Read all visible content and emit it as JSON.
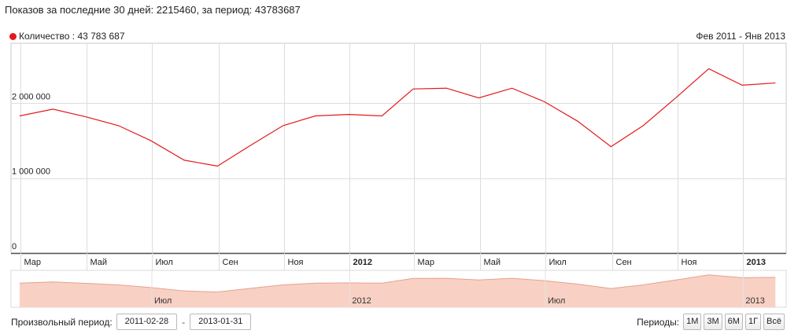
{
  "summary": {
    "label_last30": "Показов за последние 30 дней:",
    "value_last30": "2215460",
    "label_period": ", за период:",
    "value_period": "43783687"
  },
  "legend": {
    "label": "Количество : 43 783 687",
    "color": "#e31a1c"
  },
  "range_label": "Фев 2011 - Янв 2013",
  "controls": {
    "custom_period_label": "Произвольный период:",
    "date_from": "2011-02-28",
    "date_to": "2013-01-31",
    "separator": "-",
    "periods_label": "Периоды:",
    "period_buttons": [
      "1М",
      "3М",
      "6М",
      "1Г",
      "Всё"
    ]
  },
  "chart_data": {
    "type": "line",
    "series": [
      {
        "name": "Количество",
        "color": "#e31a1c",
        "x": [
          "2011-02-28",
          "2011-03-31",
          "2011-04-30",
          "2011-05-31",
          "2011-06-30",
          "2011-07-31",
          "2011-08-31",
          "2011-09-30",
          "2011-10-31",
          "2011-11-30",
          "2011-12-31",
          "2012-01-31",
          "2012-02-29",
          "2012-03-31",
          "2012-04-30",
          "2012-05-31",
          "2012-06-30",
          "2012-07-31",
          "2012-08-31",
          "2012-09-30",
          "2012-10-31",
          "2012-11-30",
          "2012-12-31",
          "2013-01-31"
        ],
        "values": [
          1830000,
          1920000,
          1820000,
          1700000,
          1500000,
          1240000,
          1160000,
          1430000,
          1700000,
          1830000,
          1850000,
          1830000,
          2190000,
          2200000,
          2070000,
          2200000,
          2020000,
          1760000,
          1420000,
          1700000,
          2080000,
          2460000,
          2240000,
          2270000
        ]
      }
    ],
    "y_ticks": [
      {
        "value": 0,
        "label": "0"
      },
      {
        "value": 1000000,
        "label": "1 000 000"
      },
      {
        "value": 2000000,
        "label": "2 000 000"
      }
    ],
    "x_ticks": [
      {
        "date": "2011-03-01",
        "label": "Мар",
        "bold": false
      },
      {
        "date": "2011-05-01",
        "label": "Май",
        "bold": false
      },
      {
        "date": "2011-07-01",
        "label": "Июл",
        "bold": false
      },
      {
        "date": "2011-09-01",
        "label": "Сен",
        "bold": false
      },
      {
        "date": "2011-11-01",
        "label": "Ноя",
        "bold": false
      },
      {
        "date": "2012-01-01",
        "label": "2012",
        "bold": true
      },
      {
        "date": "2012-03-01",
        "label": "Мар",
        "bold": false
      },
      {
        "date": "2012-05-01",
        "label": "Май",
        "bold": false
      },
      {
        "date": "2012-07-01",
        "label": "Июл",
        "bold": false
      },
      {
        "date": "2012-09-01",
        "label": "Сен",
        "bold": false
      },
      {
        "date": "2012-11-01",
        "label": "Ноя",
        "bold": false
      },
      {
        "date": "2013-01-01",
        "label": "2013",
        "bold": true
      }
    ],
    "navigator_labels": [
      {
        "date": "2011-07-01",
        "label": "Июл"
      },
      {
        "date": "2012-01-01",
        "label": "2012"
      },
      {
        "date": "2012-07-01",
        "label": "Июл"
      },
      {
        "date": "2013-01-01",
        "label": "2013"
      }
    ],
    "xlim": [
      "2011-02-20",
      "2013-02-10"
    ],
    "ylim": [
      0,
      2800000
    ],
    "grid": true,
    "legend_position": "top-left"
  }
}
